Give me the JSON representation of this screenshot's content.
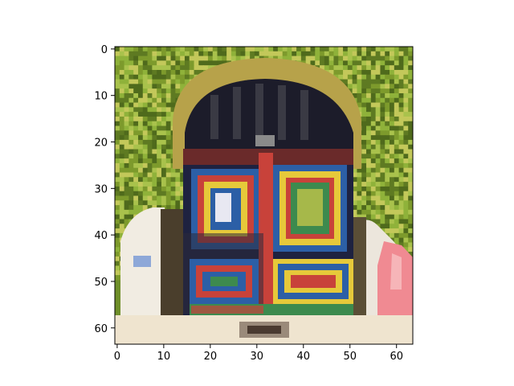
{
  "chart_data": {
    "type": "image",
    "image_description": "pixelated 64x64 photo of a colorful arched wooden door surrounded by green ivy",
    "xlim": [
      -0.5,
      63.5
    ],
    "ylim": [
      63.5,
      -0.5
    ],
    "x_ticks": [
      0,
      10,
      20,
      30,
      40,
      50,
      60
    ],
    "y_ticks": [
      0,
      10,
      20,
      30,
      40,
      50,
      60
    ],
    "x_tick_labels": [
      "0",
      "10",
      "20",
      "30",
      "40",
      "50",
      "60"
    ],
    "y_tick_labels": [
      "0",
      "10",
      "20",
      "30",
      "40",
      "50",
      "60"
    ],
    "colors": {
      "ivy_dark": "#4f6a1c",
      "ivy_light": "#8fb23a",
      "arch_stone": "#b7a24a",
      "door_dark": "#1c1c2a",
      "door_red": "#c8423a",
      "door_blue": "#2c5fa6",
      "door_yellow": "#e6c93a",
      "door_green": "#3d8a4e",
      "wall_white": "#f1ece2",
      "pink": "#f08a92",
      "ground": "#efe4cf"
    }
  }
}
